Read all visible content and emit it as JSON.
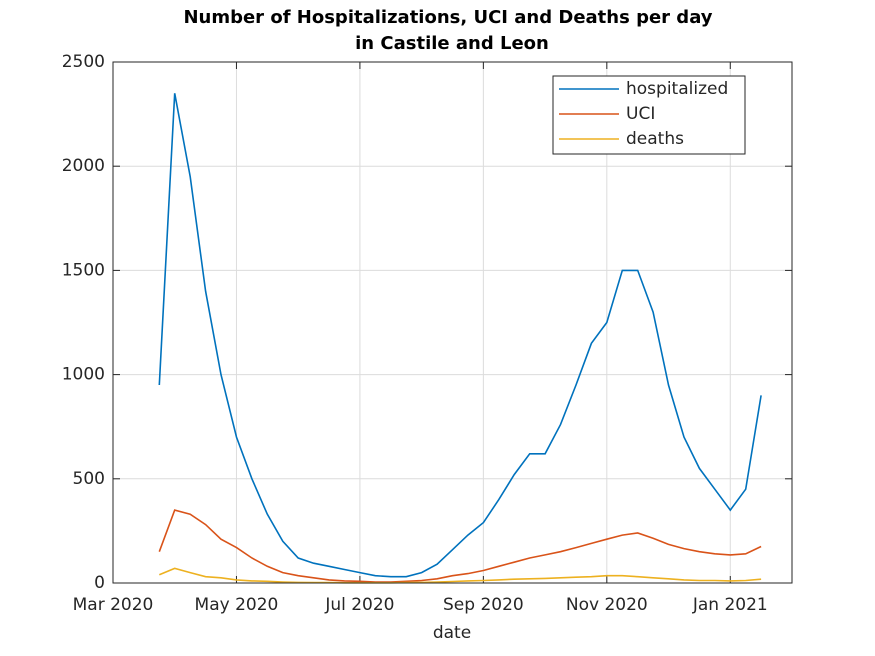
{
  "chart_data": {
    "type": "line",
    "title": [
      "Number of Hospitalizations, UCI and Deaths per day",
      "in Castile and Leon"
    ],
    "xlabel": "date",
    "categories": [
      "Mar 2020",
      null,
      null,
      null,
      null,
      null,
      null,
      null,
      "May 2020",
      null,
      null,
      null,
      null,
      null,
      null,
      null,
      "Jul 2020",
      null,
      null,
      null,
      null,
      null,
      null,
      null,
      "Sep 2020",
      null,
      null,
      null,
      null,
      null,
      null,
      null,
      "Nov 2020",
      null,
      null,
      null,
      null,
      null,
      null,
      null,
      "Jan 2021",
      null,
      null,
      null
    ],
    "series": [
      {
        "name": "hospitalized",
        "color": "#0072BD",
        "values": [
          null,
          null,
          null,
          950,
          2350,
          1950,
          1400,
          1000,
          700,
          500,
          330,
          200,
          120,
          95,
          80,
          65,
          50,
          35,
          30,
          30,
          50,
          90,
          160,
          230,
          290,
          400,
          520,
          620,
          620,
          760,
          950,
          1150,
          1250,
          1500,
          1500,
          1300,
          950,
          700,
          550,
          450,
          350,
          450,
          900,
          null
        ]
      },
      {
        "name": "UCI",
        "color": "#D95319",
        "values": [
          null,
          null,
          null,
          150,
          350,
          330,
          280,
          210,
          170,
          120,
          80,
          50,
          35,
          25,
          15,
          10,
          8,
          5,
          5,
          8,
          12,
          20,
          35,
          45,
          60,
          80,
          100,
          120,
          135,
          150,
          170,
          190,
          210,
          230,
          240,
          215,
          185,
          165,
          150,
          140,
          135,
          140,
          175,
          null
        ]
      },
      {
        "name": "deaths",
        "color": "#EDB120",
        "values": [
          null,
          null,
          null,
          40,
          70,
          50,
          30,
          25,
          15,
          10,
          8,
          5,
          3,
          2,
          2,
          1,
          1,
          1,
          1,
          2,
          3,
          5,
          7,
          10,
          12,
          15,
          18,
          20,
          22,
          25,
          28,
          30,
          35,
          35,
          30,
          25,
          20,
          15,
          12,
          12,
          10,
          12,
          18,
          null
        ]
      }
    ],
    "ylim": [
      0,
      2500
    ],
    "yticks": [
      0,
      500,
      1000,
      1500,
      2000,
      2500
    ],
    "grid": true,
    "legend": "northeast"
  }
}
